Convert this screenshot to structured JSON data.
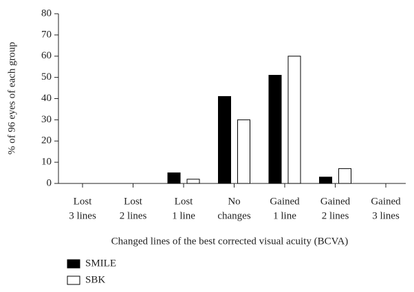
{
  "chart_data": {
    "type": "bar",
    "y_label": "% of 96 eyes of each group",
    "x_label": "Changed lines of the best corrected visual acuity (BCVA)",
    "categories": [
      [
        "Lost",
        "3 lines"
      ],
      [
        "Lost",
        "2 lines"
      ],
      [
        "Lost",
        "1 line"
      ],
      [
        "No",
        "changes"
      ],
      [
        "Gained",
        "1 line"
      ],
      [
        "Gained",
        "2 lines"
      ],
      [
        "Gained",
        "3 lines"
      ]
    ],
    "series": [
      {
        "name": "SMILE",
        "color": "#000000",
        "values": [
          0,
          0,
          5,
          41,
          51,
          3,
          0
        ]
      },
      {
        "name": "SBK",
        "color": "#ffffff",
        "values": [
          0,
          0,
          2,
          30,
          60,
          7,
          0
        ]
      }
    ],
    "ylim": [
      0,
      80
    ],
    "yticks": [
      0,
      10,
      20,
      30,
      40,
      50,
      60,
      70,
      80
    ]
  }
}
